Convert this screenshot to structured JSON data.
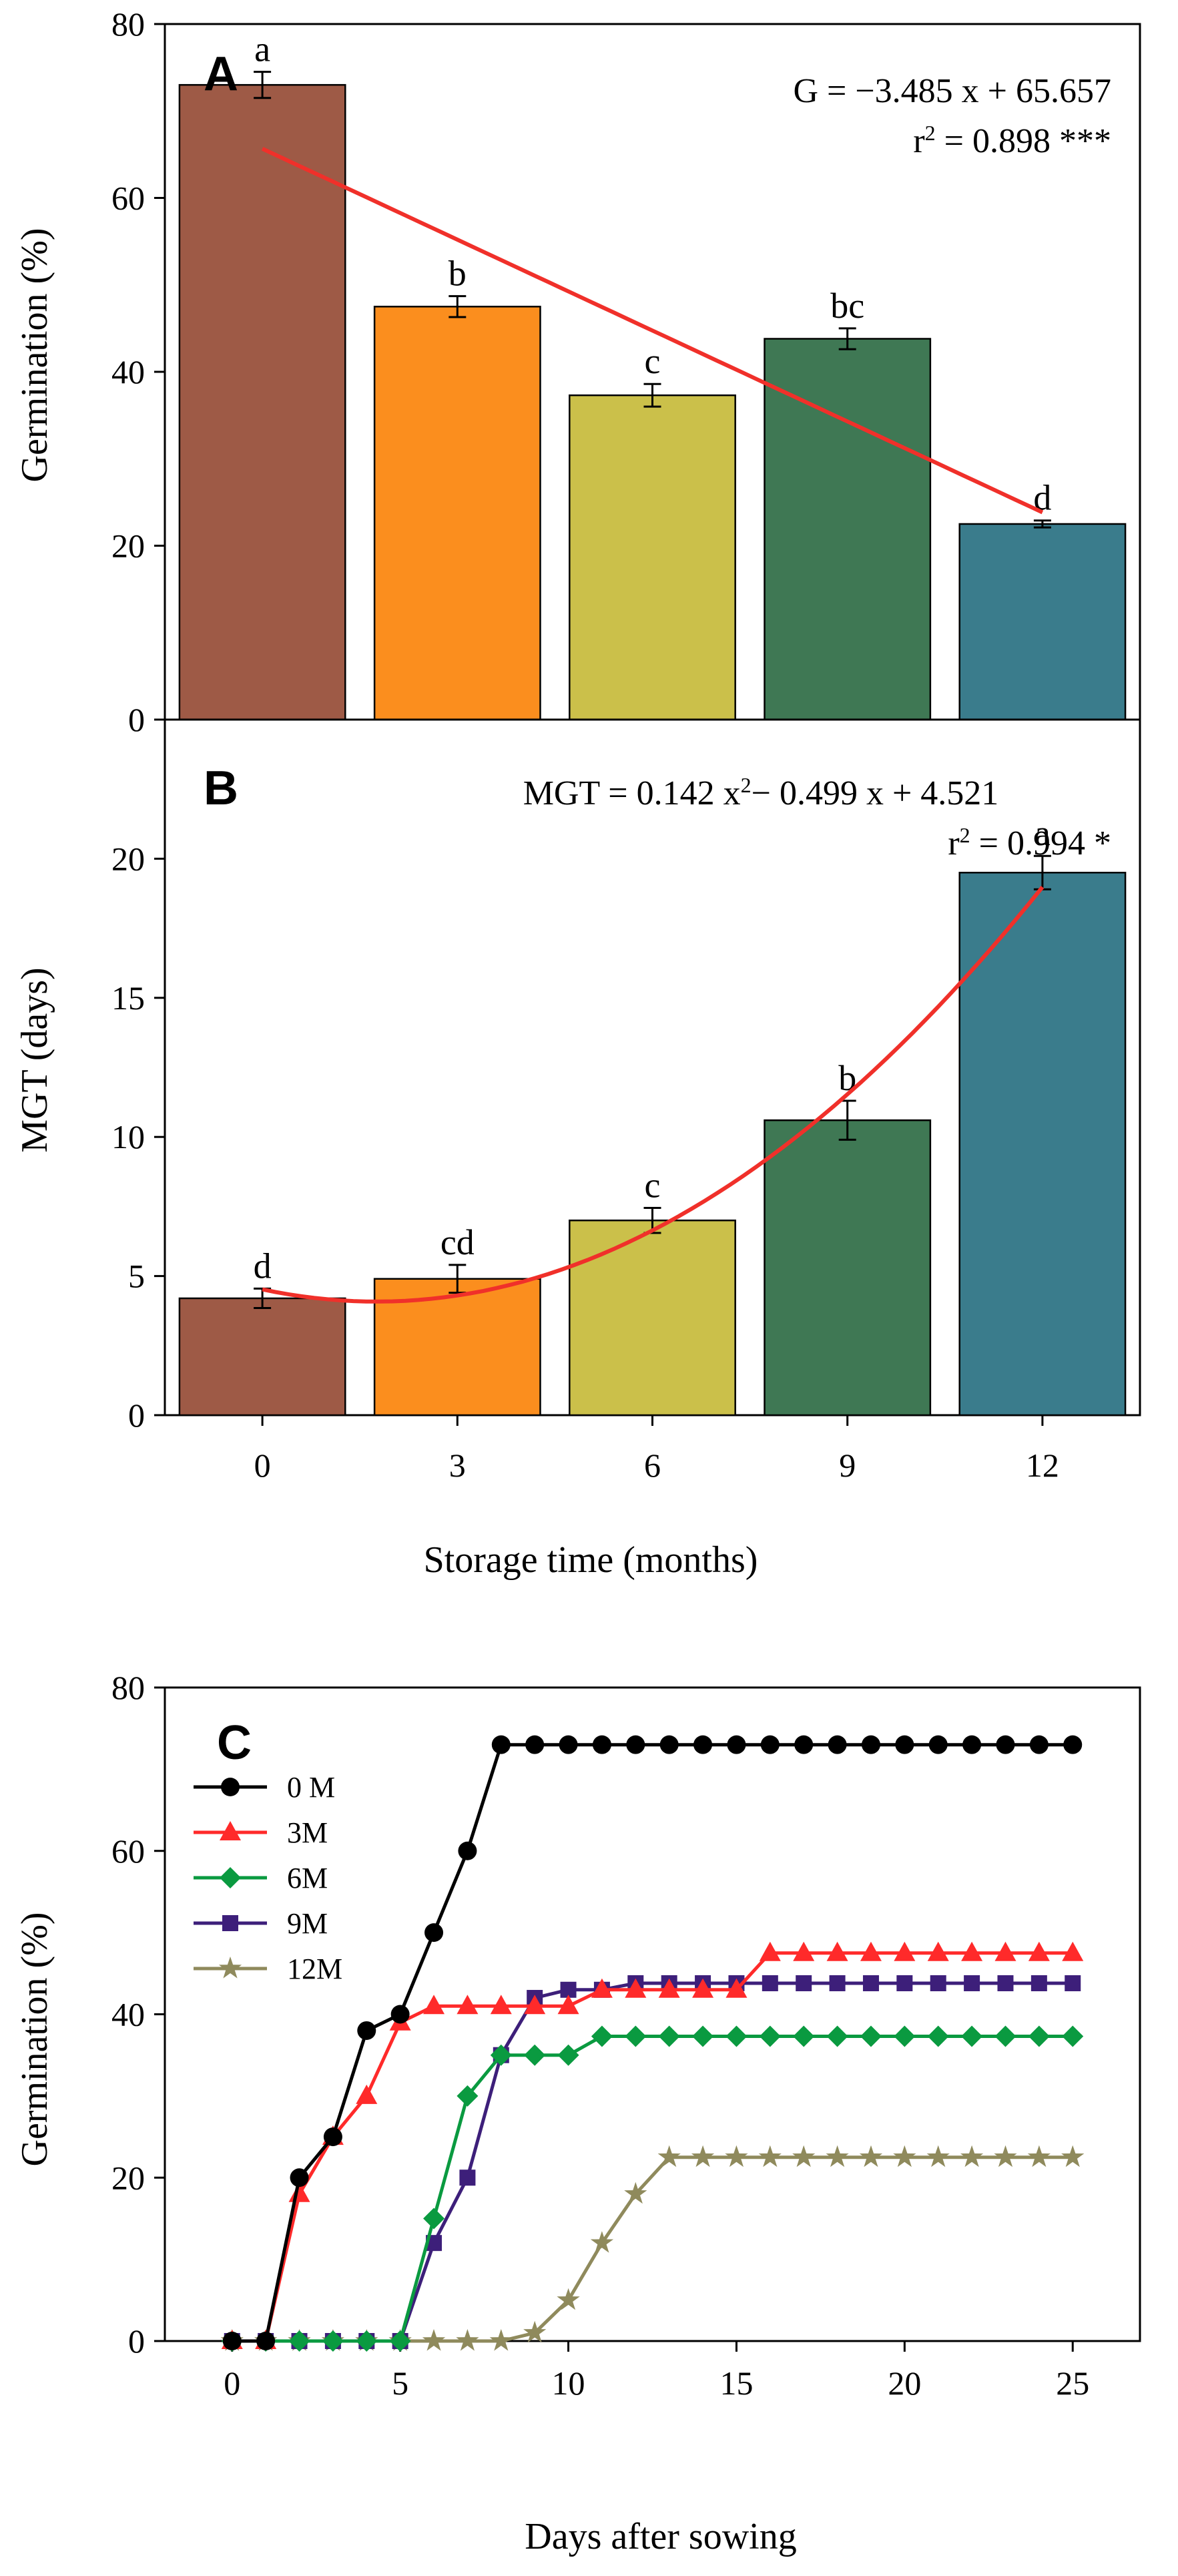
{
  "chart_data": [
    {
      "panel": "A",
      "type": "bar",
      "xlabel": "Storage time (months)",
      "ylabel": "Germination (%)",
      "ylim": [
        0,
        80
      ],
      "yticks": [
        "0",
        "20",
        "40",
        "60",
        "80"
      ],
      "categories": [
        "0",
        "3",
        "6",
        "9",
        "12"
      ],
      "values": [
        73,
        47.5,
        37.3,
        43.8,
        22.5
      ],
      "errors": [
        1.5,
        1.2,
        1.3,
        1.2,
        0.4
      ],
      "letters": [
        "a",
        "b",
        "c",
        "bc",
        "d"
      ],
      "colors": [
        "#9e5a46",
        "#fb8e1e",
        "#cbc04a",
        "#3f7854",
        "#3a7c8c"
      ],
      "regression": {
        "type": "linear",
        "a": -3.485,
        "b": 65.657,
        "color": "#f0302a"
      },
      "equation": "G = −3.485 x + 65.657",
      "r2_label": "r",
      "r2_value": " = 0.898 ***"
    },
    {
      "panel": "B",
      "type": "bar",
      "xlabel": "Storage time (months)",
      "ylabel": "MGT (days)",
      "ylim": [
        0,
        25
      ],
      "yticks": [
        "0",
        "5",
        "10",
        "15",
        "20"
      ],
      "categories": [
        "0",
        "3",
        "6",
        "9",
        "12"
      ],
      "values": [
        4.2,
        4.9,
        7.0,
        10.6,
        19.5
      ],
      "errors": [
        0.35,
        0.5,
        0.45,
        0.7,
        0.6
      ],
      "letters": [
        "d",
        "cd",
        "c",
        "b",
        "a"
      ],
      "colors": [
        "#9e5a46",
        "#fb8e1e",
        "#cbc04a",
        "#3f7854",
        "#3a7c8c"
      ],
      "regression": {
        "type": "quadratic",
        "a": 0.142,
        "b": -0.499,
        "c": 4.521,
        "color": "#f0302a"
      },
      "equation_part1": "MGT = 0.142 x",
      "equation_part2": "− 0.499 x + 4.521",
      "r2_label": "r",
      "r2_value": " = 0.994 *"
    },
    {
      "panel": "C",
      "type": "line",
      "xlabel": "Days after sowing",
      "ylabel": "Germination (%)",
      "xlim": [
        -2,
        27
      ],
      "ylim": [
        0,
        80
      ],
      "xticks": [
        "0",
        "5",
        "10",
        "15",
        "20",
        "25"
      ],
      "yticks": [
        "0",
        "20",
        "40",
        "60",
        "80"
      ],
      "x": [
        0,
        1,
        2,
        3,
        4,
        5,
        6,
        7,
        8,
        9,
        10,
        11,
        12,
        13,
        14,
        15,
        16,
        17,
        18,
        19,
        20,
        21,
        22,
        23,
        24,
        25
      ],
      "series": [
        {
          "name": "0 M",
          "color": "#000000",
          "marker": "circle",
          "values": [
            0,
            0,
            20,
            25,
            38,
            40,
            50,
            60,
            73,
            73,
            73,
            73,
            73,
            73,
            73,
            73,
            73,
            73,
            73,
            73,
            73,
            73,
            73,
            73,
            73,
            73
          ]
        },
        {
          "name": "3M",
          "color": "#ff2a2a",
          "marker": "triangle",
          "values": [
            0,
            0,
            18,
            25,
            30,
            39,
            41,
            41,
            41,
            41,
            41,
            43,
            43,
            43,
            43,
            43,
            47.5,
            47.5,
            47.5,
            47.5,
            47.5,
            47.5,
            47.5,
            47.5,
            47.5,
            47.5
          ]
        },
        {
          "name": "6M",
          "color": "#0a9a40",
          "marker": "diamond",
          "values": [
            0,
            0,
            0,
            0,
            0,
            0,
            15,
            30,
            35,
            35,
            35,
            37.3,
            37.3,
            37.3,
            37.3,
            37.3,
            37.3,
            37.3,
            37.3,
            37.3,
            37.3,
            37.3,
            37.3,
            37.3,
            37.3,
            37.3
          ]
        },
        {
          "name": "9M",
          "color": "#3d1f7a",
          "marker": "square",
          "values": [
            0,
            0,
            0,
            0,
            0,
            0,
            12,
            20,
            35,
            42,
            43,
            43,
            43.8,
            43.8,
            43.8,
            43.8,
            43.8,
            43.8,
            43.8,
            43.8,
            43.8,
            43.8,
            43.8,
            43.8,
            43.8,
            43.8
          ]
        },
        {
          "name": "12M",
          "color": "#8f8a5c",
          "marker": "star",
          "values": [
            0,
            0,
            0,
            0,
            0,
            0,
            0,
            0,
            0,
            1,
            5,
            12,
            18,
            22.5,
            22.5,
            22.5,
            22.5,
            22.5,
            22.5,
            22.5,
            22.5,
            22.5,
            22.5,
            22.5,
            22.5,
            22.5
          ]
        }
      ]
    }
  ]
}
